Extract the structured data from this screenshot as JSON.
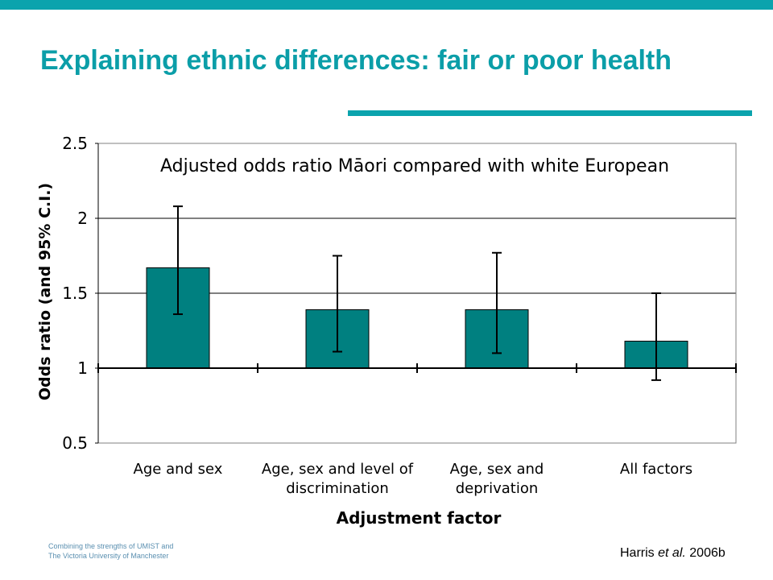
{
  "slide": {
    "title": "Explaining ethnic differences: fair or poor health",
    "footer_line1": "Combining the strengths of UMIST and",
    "footer_line2": "The Victoria University of Manchester",
    "citation_author": "Harris",
    "citation_etal": "et al.",
    "citation_year": "2006b"
  },
  "colors": {
    "accent": "#0ba3ad",
    "bar": "#008080",
    "title": "#0b9ea8"
  },
  "chart_data": {
    "type": "bar",
    "title": "Adjusted odds ratio Māori compared with white European",
    "xlabel": "Adjustment factor",
    "ylabel": "Odds ratio (and 95% C.I.)",
    "categories": [
      [
        "Age and sex"
      ],
      [
        "Age, sex and level of",
        "discrimination"
      ],
      [
        "Age, sex and",
        "deprivation"
      ],
      [
        "All factors"
      ]
    ],
    "values": [
      1.67,
      1.39,
      1.39,
      1.18
    ],
    "ci_lower": [
      1.36,
      1.11,
      1.1,
      0.92
    ],
    "ci_upper": [
      2.08,
      1.75,
      1.77,
      1.5
    ],
    "baseline": 1,
    "ylim": [
      0.5,
      2.5
    ],
    "yticks": [
      "0.5",
      "1",
      "1.5",
      "2",
      "2.5"
    ],
    "grid": true,
    "legend": "none"
  }
}
